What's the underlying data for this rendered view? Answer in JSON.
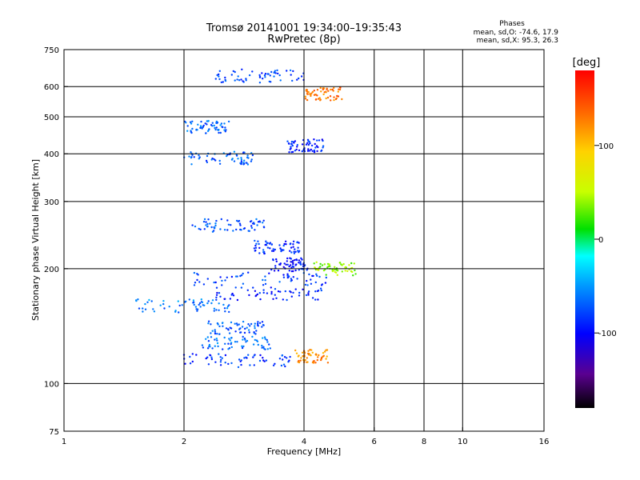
{
  "chart_data": {
    "type": "scatter",
    "title": "Tromsø 20141001 19:34:00–19:35:43",
    "subtitle": "RwPretec (8p)",
    "stats": {
      "heading": "Phases",
      "line1": "mean, sd,O: -74.6, 17.9",
      "line2": "mean, sd,X:  95.3, 26.3"
    },
    "xlabel": "Frequency [MHz]",
    "ylabel": "Stationary phase Virtual Height [km]",
    "x_scale": "log",
    "y_scale": "log",
    "xlim": [
      1,
      16
    ],
    "ylim": [
      75,
      750
    ],
    "x_ticks": [
      1,
      2,
      4,
      6,
      8,
      10,
      16
    ],
    "x_tick_labels": [
      "1",
      "2",
      "4",
      "6",
      "8",
      "10",
      "16"
    ],
    "y_ticks": [
      75,
      100,
      200,
      300,
      400,
      500,
      600,
      750
    ],
    "y_tick_labels": [
      "75",
      "100",
      "200",
      "300",
      "400",
      "500",
      "600",
      "750"
    ],
    "grid": true,
    "colorbar": {
      "label": "[deg]",
      "range": [
        -180,
        180
      ],
      "ticks": [
        100,
        0,
        -100
      ],
      "tick_labels": [
        "100",
        "0",
        "-100"
      ]
    },
    "colors": {
      "o_trace": "#1e64ff",
      "x_trace": "#ff8c00"
    },
    "traces": [
      {
        "name": "",
        "x": [
          2.0,
          3.8
        ],
        "y": [
          115,
          115
        ],
        "phase": -85
      },
      {
        "name": "",
        "x": [
          2.2,
          3.3
        ],
        "y": [
          128,
          128
        ],
        "phase": -65
      },
      {
        "name": "",
        "x": [
          2.3,
          3.2
        ],
        "y": [
          140,
          140
        ],
        "phase": -70
      },
      {
        "name": "",
        "x": [
          1.5,
          2.6
        ],
        "y": [
          160,
          160
        ],
        "phase": -60
      },
      {
        "name": "",
        "x": [
          2.4,
          4.5
        ],
        "y": [
          172,
          172
        ],
        "phase": -90
      },
      {
        "name": "",
        "x": [
          2.1,
          4.6
        ],
        "y": [
          188,
          188
        ],
        "phase": -80
      },
      {
        "name": "",
        "x": [
          3.3,
          4.1
        ],
        "y": [
          205,
          205
        ],
        "phase": -95
      },
      {
        "name": "",
        "x": [
          3.0,
          3.9
        ],
        "y": [
          228,
          228
        ],
        "phase": -85
      },
      {
        "name": "",
        "x": [
          2.1,
          3.2
        ],
        "y": [
          260,
          260
        ],
        "phase": -75
      },
      {
        "name": "",
        "x": [
          2.0,
          3.0
        ],
        "y": [
          390,
          390
        ],
        "phase": -70
      },
      {
        "name": "",
        "x": [
          2.0,
          2.6
        ],
        "y": [
          470,
          470
        ],
        "phase": -65
      },
      {
        "name": "",
        "x": [
          3.6,
          4.5
        ],
        "y": [
          420,
          420
        ],
        "phase": -90
      },
      {
        "name": "",
        "x": [
          2.4,
          4.0
        ],
        "y": [
          640,
          640
        ],
        "phase": -80
      },
      {
        "name": "",
        "x": [
          4.2,
          5.4
        ],
        "y": [
          200,
          200
        ],
        "phase": 40
      },
      {
        "name": "",
        "x": [
          4.0,
          5.0
        ],
        "y": [
          575,
          575
        ],
        "phase": 130
      },
      {
        "name": "",
        "x": [
          3.8,
          4.6
        ],
        "y": [
          118,
          118
        ],
        "phase": 120
      }
    ],
    "notes": {
      "o_mode_phase": "blue (about -100 deg)",
      "x_mode_phase": "orange to yellow (about +100 deg)"
    }
  }
}
